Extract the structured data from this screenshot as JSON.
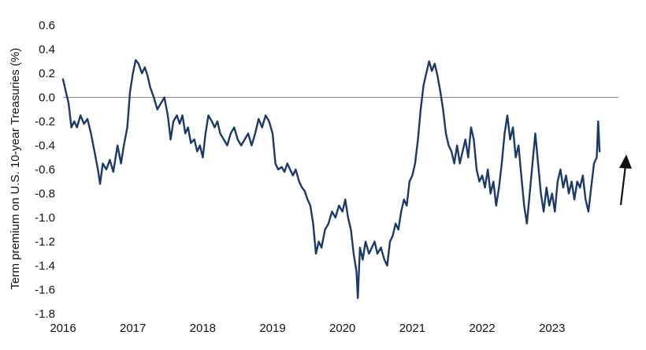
{
  "chart_data": {
    "type": "line",
    "title": "",
    "xlabel": "",
    "ylabel": "Term premium on U.S. 10-year Treasuries (%)",
    "xlim": [
      2016.0,
      2023.95
    ],
    "ylim": [
      -1.8,
      0.6
    ],
    "x_ticks": [
      "2016",
      "2017",
      "2018",
      "2019",
      "2020",
      "2021",
      "2022",
      "2023"
    ],
    "y_ticks": [
      "0.6",
      "0.4",
      "0.2",
      "0.0",
      "-0.2",
      "-0.4",
      "-0.6",
      "-0.8",
      "-1.0",
      "-1.2",
      "-1.4",
      "-1.6",
      "-1.8"
    ],
    "reference_line_y": 0.0,
    "grid": false,
    "legend": "none",
    "annotation": "upward arrow at right edge",
    "series": [
      {
        "color": "#1b3a6b",
        "points": [
          [
            2016.0,
            0.15
          ],
          [
            2016.04,
            0.05
          ],
          [
            2016.08,
            -0.05
          ],
          [
            2016.12,
            -0.25
          ],
          [
            2016.16,
            -0.2
          ],
          [
            2016.2,
            -0.25
          ],
          [
            2016.25,
            -0.15
          ],
          [
            2016.3,
            -0.22
          ],
          [
            2016.35,
            -0.18
          ],
          [
            2016.4,
            -0.3
          ],
          [
            2016.45,
            -0.45
          ],
          [
            2016.5,
            -0.6
          ],
          [
            2016.53,
            -0.72
          ],
          [
            2016.57,
            -0.55
          ],
          [
            2016.62,
            -0.6
          ],
          [
            2016.67,
            -0.52
          ],
          [
            2016.72,
            -0.62
          ],
          [
            2016.78,
            -0.4
          ],
          [
            2016.83,
            -0.55
          ],
          [
            2016.87,
            -0.4
          ],
          [
            2016.92,
            -0.25
          ],
          [
            2016.96,
            0.05
          ],
          [
            2017.0,
            0.2
          ],
          [
            2017.04,
            0.31
          ],
          [
            2017.08,
            0.28
          ],
          [
            2017.13,
            0.2
          ],
          [
            2017.17,
            0.25
          ],
          [
            2017.21,
            0.18
          ],
          [
            2017.25,
            0.08
          ],
          [
            2017.3,
            0.0
          ],
          [
            2017.35,
            -0.1
          ],
          [
            2017.4,
            -0.05
          ],
          [
            2017.45,
            0.0
          ],
          [
            2017.5,
            -0.15
          ],
          [
            2017.54,
            -0.35
          ],
          [
            2017.58,
            -0.2
          ],
          [
            2017.63,
            -0.15
          ],
          [
            2017.67,
            -0.22
          ],
          [
            2017.71,
            -0.15
          ],
          [
            2017.75,
            -0.3
          ],
          [
            2017.79,
            -0.25
          ],
          [
            2017.83,
            -0.38
          ],
          [
            2017.88,
            -0.35
          ],
          [
            2017.92,
            -0.45
          ],
          [
            2017.96,
            -0.4
          ],
          [
            2018.0,
            -0.5
          ],
          [
            2018.04,
            -0.3
          ],
          [
            2018.08,
            -0.15
          ],
          [
            2018.13,
            -0.2
          ],
          [
            2018.17,
            -0.25
          ],
          [
            2018.21,
            -0.2
          ],
          [
            2018.25,
            -0.3
          ],
          [
            2018.3,
            -0.35
          ],
          [
            2018.35,
            -0.4
          ],
          [
            2018.4,
            -0.3
          ],
          [
            2018.45,
            -0.25
          ],
          [
            2018.5,
            -0.35
          ],
          [
            2018.55,
            -0.4
          ],
          [
            2018.6,
            -0.35
          ],
          [
            2018.65,
            -0.3
          ],
          [
            2018.7,
            -0.4
          ],
          [
            2018.75,
            -0.3
          ],
          [
            2018.8,
            -0.18
          ],
          [
            2018.85,
            -0.25
          ],
          [
            2018.9,
            -0.15
          ],
          [
            2018.95,
            -0.2
          ],
          [
            2019.0,
            -0.3
          ],
          [
            2019.04,
            -0.55
          ],
          [
            2019.08,
            -0.6
          ],
          [
            2019.13,
            -0.58
          ],
          [
            2019.17,
            -0.62
          ],
          [
            2019.21,
            -0.55
          ],
          [
            2019.25,
            -0.6
          ],
          [
            2019.29,
            -0.65
          ],
          [
            2019.33,
            -0.6
          ],
          [
            2019.38,
            -0.7
          ],
          [
            2019.42,
            -0.75
          ],
          [
            2019.46,
            -0.78
          ],
          [
            2019.5,
            -0.85
          ],
          [
            2019.54,
            -0.9
          ],
          [
            2019.58,
            -1.05
          ],
          [
            2019.62,
            -1.3
          ],
          [
            2019.66,
            -1.2
          ],
          [
            2019.7,
            -1.25
          ],
          [
            2019.75,
            -1.1
          ],
          [
            2019.8,
            -1.05
          ],
          [
            2019.85,
            -0.95
          ],
          [
            2019.9,
            -1.0
          ],
          [
            2019.95,
            -0.9
          ],
          [
            2020.0,
            -0.95
          ],
          [
            2020.04,
            -0.85
          ],
          [
            2020.08,
            -1.0
          ],
          [
            2020.12,
            -1.1
          ],
          [
            2020.16,
            -1.3
          ],
          [
            2020.2,
            -1.45
          ],
          [
            2020.22,
            -1.67
          ],
          [
            2020.25,
            -1.25
          ],
          [
            2020.29,
            -1.35
          ],
          [
            2020.33,
            -1.2
          ],
          [
            2020.38,
            -1.3
          ],
          [
            2020.42,
            -1.25
          ],
          [
            2020.46,
            -1.2
          ],
          [
            2020.5,
            -1.3
          ],
          [
            2020.55,
            -1.25
          ],
          [
            2020.6,
            -1.35
          ],
          [
            2020.64,
            -1.4
          ],
          [
            2020.68,
            -1.2
          ],
          [
            2020.72,
            -1.15
          ],
          [
            2020.76,
            -1.05
          ],
          [
            2020.8,
            -1.1
          ],
          [
            2020.84,
            -0.95
          ],
          [
            2020.88,
            -0.85
          ],
          [
            2020.92,
            -0.9
          ],
          [
            2020.96,
            -0.7
          ],
          [
            2021.0,
            -0.65
          ],
          [
            2021.04,
            -0.55
          ],
          [
            2021.08,
            -0.35
          ],
          [
            2021.12,
            -0.1
          ],
          [
            2021.16,
            0.1
          ],
          [
            2021.2,
            0.2
          ],
          [
            2021.24,
            0.3
          ],
          [
            2021.28,
            0.22
          ],
          [
            2021.32,
            0.28
          ],
          [
            2021.36,
            0.18
          ],
          [
            2021.4,
            0.05
          ],
          [
            2021.44,
            -0.1
          ],
          [
            2021.48,
            -0.3
          ],
          [
            2021.52,
            -0.4
          ],
          [
            2021.56,
            -0.45
          ],
          [
            2021.6,
            -0.55
          ],
          [
            2021.64,
            -0.4
          ],
          [
            2021.68,
            -0.55
          ],
          [
            2021.72,
            -0.45
          ],
          [
            2021.76,
            -0.35
          ],
          [
            2021.8,
            -0.5
          ],
          [
            2021.84,
            -0.25
          ],
          [
            2021.88,
            -0.35
          ],
          [
            2021.92,
            -0.6
          ],
          [
            2021.96,
            -0.7
          ],
          [
            2022.0,
            -0.65
          ],
          [
            2022.04,
            -0.75
          ],
          [
            2022.08,
            -0.6
          ],
          [
            2022.12,
            -0.8
          ],
          [
            2022.16,
            -0.7
          ],
          [
            2022.2,
            -0.9
          ],
          [
            2022.24,
            -0.75
          ],
          [
            2022.28,
            -0.55
          ],
          [
            2022.32,
            -0.3
          ],
          [
            2022.36,
            -0.15
          ],
          [
            2022.4,
            -0.35
          ],
          [
            2022.44,
            -0.25
          ],
          [
            2022.48,
            -0.5
          ],
          [
            2022.52,
            -0.4
          ],
          [
            2022.56,
            -0.65
          ],
          [
            2022.6,
            -0.9
          ],
          [
            2022.64,
            -1.05
          ],
          [
            2022.68,
            -0.8
          ],
          [
            2022.72,
            -0.55
          ],
          [
            2022.76,
            -0.3
          ],
          [
            2022.8,
            -0.55
          ],
          [
            2022.84,
            -0.8
          ],
          [
            2022.88,
            -0.95
          ],
          [
            2022.92,
            -0.75
          ],
          [
            2022.96,
            -0.9
          ],
          [
            2023.0,
            -0.8
          ],
          [
            2023.04,
            -0.95
          ],
          [
            2023.08,
            -0.7
          ],
          [
            2023.12,
            -0.6
          ],
          [
            2023.16,
            -0.75
          ],
          [
            2023.2,
            -0.65
          ],
          [
            2023.24,
            -0.8
          ],
          [
            2023.28,
            -0.7
          ],
          [
            2023.32,
            -0.85
          ],
          [
            2023.36,
            -0.7
          ],
          [
            2023.4,
            -0.75
          ],
          [
            2023.44,
            -0.65
          ],
          [
            2023.48,
            -0.85
          ],
          [
            2023.52,
            -0.95
          ],
          [
            2023.56,
            -0.75
          ],
          [
            2023.6,
            -0.55
          ],
          [
            2023.64,
            -0.5
          ],
          [
            2023.66,
            -0.2
          ],
          [
            2023.68,
            -0.45
          ]
        ]
      }
    ]
  }
}
